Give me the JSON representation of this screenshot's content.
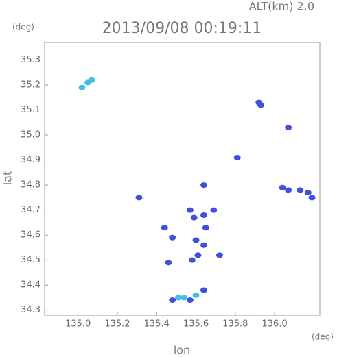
{
  "chart_data": {
    "type": "scatter",
    "header": "ALT(km) 2.0",
    "y_unit": "(deg)",
    "title": "2013/09/08 00:19:11",
    "ylabel": "lat",
    "xlabel": "lon",
    "x_unit": "(deg)",
    "xlim": [
      134.83,
      136.23
    ],
    "ylim": [
      34.28,
      35.37
    ],
    "xticks": [
      {
        "value": 135.0,
        "label": "135.0"
      },
      135.2,
      135.4,
      135.6,
      135.8,
      {
        "value": 136.0,
        "label": "136.0"
      }
    ],
    "yticks": [
      35.3,
      35.2,
      35.1,
      {
        "value": 35.0,
        "label": "35.0"
      },
      34.9,
      34.8,
      34.7,
      34.6,
      34.5,
      34.4,
      34.3
    ],
    "series": [
      {
        "color": "#3f4fe0",
        "x": [
          135.92,
          135.93,
          136.07,
          135.81,
          136.04,
          136.07,
          136.13,
          136.17,
          136.19,
          135.64,
          135.31,
          135.44,
          135.57,
          135.59,
          135.64,
          135.69,
          135.65,
          135.6,
          135.64,
          135.61,
          135.58,
          135.46,
          135.48,
          135.72,
          135.57,
          135.64,
          135.48
        ],
        "values": [
          35.13,
          35.12,
          35.03,
          34.91,
          34.79,
          34.78,
          34.78,
          34.77,
          34.75,
          34.8,
          34.75,
          34.63,
          34.7,
          34.67,
          34.68,
          34.7,
          34.63,
          34.58,
          34.56,
          34.52,
          34.5,
          34.49,
          34.59,
          34.52,
          34.34,
          34.38,
          34.34
        ]
      },
      {
        "color": "#46bde8",
        "x": [
          135.02,
          135.05,
          135.07,
          135.51,
          135.54,
          135.6
        ],
        "values": [
          35.19,
          35.21,
          35.22,
          34.35,
          34.35,
          34.36
        ]
      }
    ]
  }
}
